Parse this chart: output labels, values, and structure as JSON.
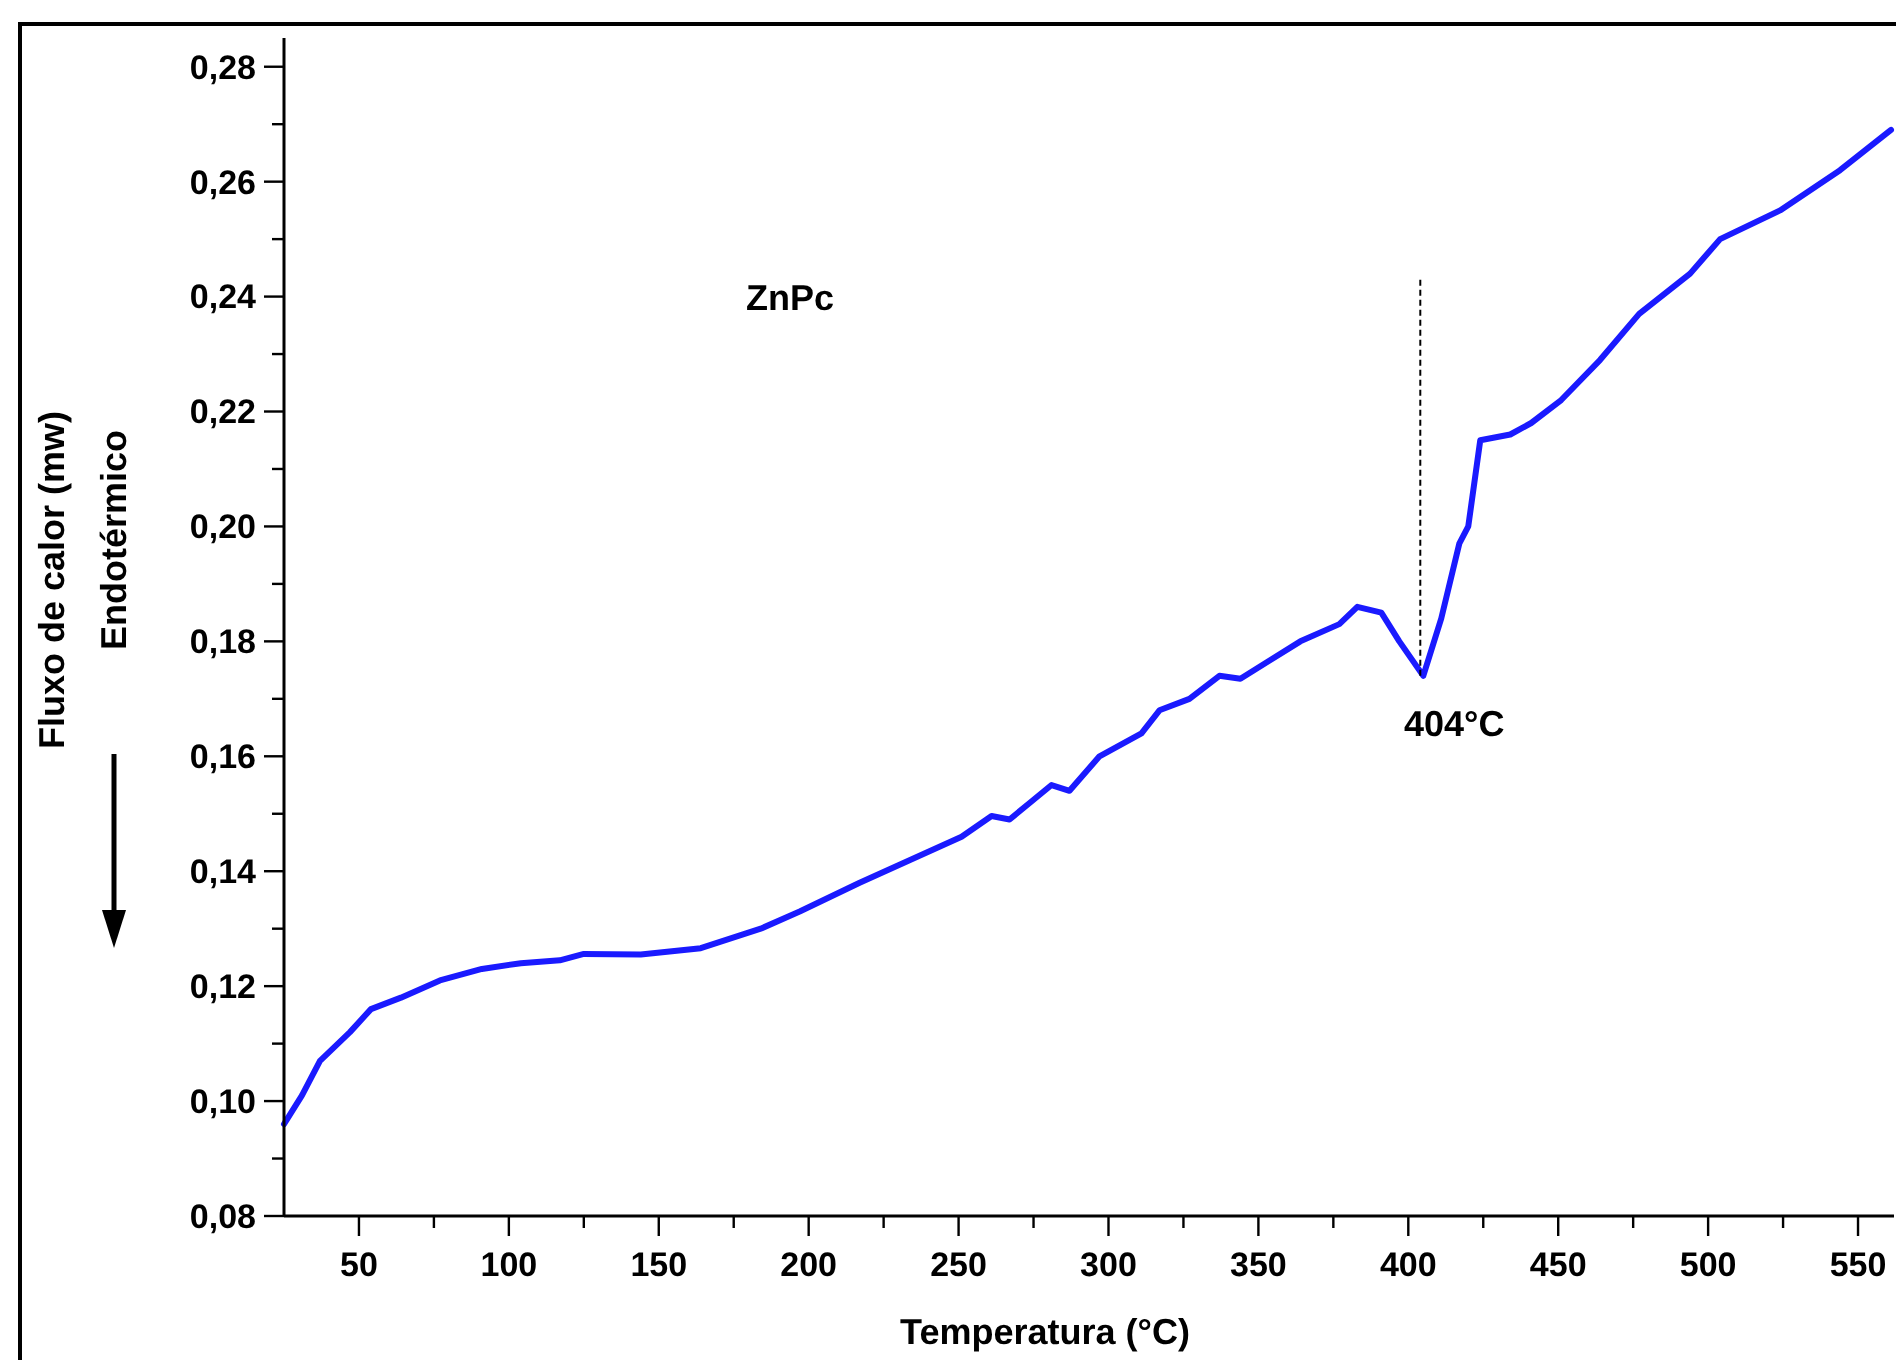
{
  "chart_data": {
    "type": "line",
    "xlabel": "Temperatura (°C)",
    "ylabel": "Fluxo de calor (mw)",
    "xlim": [
      25,
      562
    ],
    "ylim": [
      0.08,
      0.285
    ],
    "xticks": [
      50,
      {
        "value": 75,
        "label": null
      },
      100,
      {
        "value": 125,
        "label": null
      },
      150,
      {
        "value": 175,
        "label": null
      },
      200,
      {
        "value": 225,
        "label": null
      },
      250,
      {
        "value": 275,
        "label": null
      },
      300,
      {
        "value": 325,
        "label": null
      },
      350,
      {
        "value": 375,
        "label": null
      },
      400,
      {
        "value": 425,
        "label": null
      },
      450,
      {
        "value": 475,
        "label": null
      },
      500,
      {
        "value": 525,
        "label": null
      },
      550
    ],
    "yticks": [
      {
        "value": 0.08,
        "label": "0,08"
      },
      {
        "value": 0.09,
        "label": null
      },
      {
        "value": 0.1,
        "label": "0,10"
      },
      {
        "value": 0.11,
        "label": null
      },
      {
        "value": 0.12,
        "label": "0,12"
      },
      {
        "value": 0.13,
        "label": null
      },
      {
        "value": 0.14,
        "label": "0,14"
      },
      {
        "value": 0.15,
        "label": null
      },
      {
        "value": 0.16,
        "label": "0,16"
      },
      {
        "value": 0.17,
        "label": null
      },
      {
        "value": 0.18,
        "label": "0,18"
      },
      {
        "value": 0.19,
        "label": null
      },
      {
        "value": 0.2,
        "label": "0,20"
      },
      {
        "value": 0.21,
        "label": null
      },
      {
        "value": 0.22,
        "label": "0,22"
      },
      {
        "value": 0.23,
        "label": null
      },
      {
        "value": 0.24,
        "label": "0,24"
      },
      {
        "value": 0.25,
        "label": null
      },
      {
        "value": 0.26,
        "label": "0,26"
      },
      {
        "value": 0.27,
        "label": null
      },
      {
        "value": 0.28,
        "label": "0,28"
      }
    ],
    "grid": false,
    "marker": "none",
    "line_style": "solid",
    "series": [
      {
        "color": "#1a1aff",
        "x": [
          25,
          31,
          37,
          47,
          54,
          64,
          77,
          91,
          104,
          117,
          125,
          144,
          164,
          184,
          197,
          217,
          234,
          251,
          261,
          267,
          274,
          281,
          287,
          297,
          311,
          317,
          327,
          337,
          344,
          364,
          377,
          383,
          391,
          397,
          405,
          411,
          417,
          420,
          424,
          434,
          441,
          451,
          464,
          477,
          494,
          504,
          524,
          544,
          561
        ],
        "values": [
          0.096,
          0.101,
          0.107,
          0.112,
          0.116,
          0.118,
          0.121,
          0.123,
          0.124,
          0.1245,
          0.1256,
          0.1255,
          0.1266,
          0.13,
          0.133,
          0.138,
          0.142,
          0.146,
          0.1496,
          0.149,
          0.152,
          0.155,
          0.154,
          0.16,
          0.164,
          0.168,
          0.17,
          0.174,
          0.1735,
          0.18,
          0.183,
          0.186,
          0.185,
          0.18,
          0.174,
          0.184,
          0.197,
          0.2,
          0.215,
          0.216,
          0.218,
          0.222,
          0.229,
          0.237,
          0.244,
          0.25,
          0.255,
          0.262,
          0.269
        ]
      }
    ],
    "annotations": [
      "ZnPc",
      "Endotérmico",
      {
        "text": "404°C",
        "x": 404,
        "y": 0.174
      }
    ]
  }
}
